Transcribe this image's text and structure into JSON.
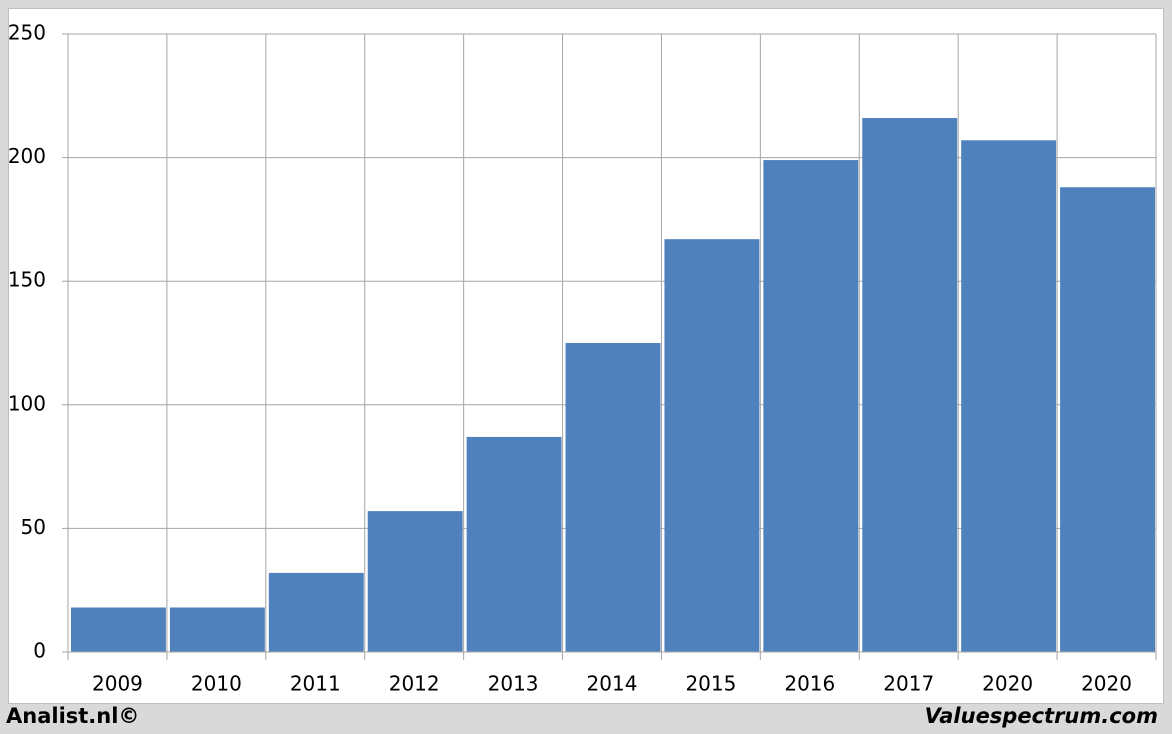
{
  "chart_data": {
    "type": "bar",
    "categories": [
      "2009",
      "2010",
      "2011",
      "2012",
      "2013",
      "2014",
      "2015",
      "2016",
      "2017",
      "2020",
      "2020"
    ],
    "values": [
      18,
      18,
      32,
      57,
      87,
      125,
      167,
      199,
      216,
      207,
      188
    ],
    "color": "#4f81bd",
    "ylim": [
      0,
      250
    ],
    "yticks": [
      0,
      50,
      100,
      150,
      200,
      250
    ],
    "grid": true,
    "annotations": [
      "Analist.nl©",
      "Valuespectrum.com"
    ]
  }
}
